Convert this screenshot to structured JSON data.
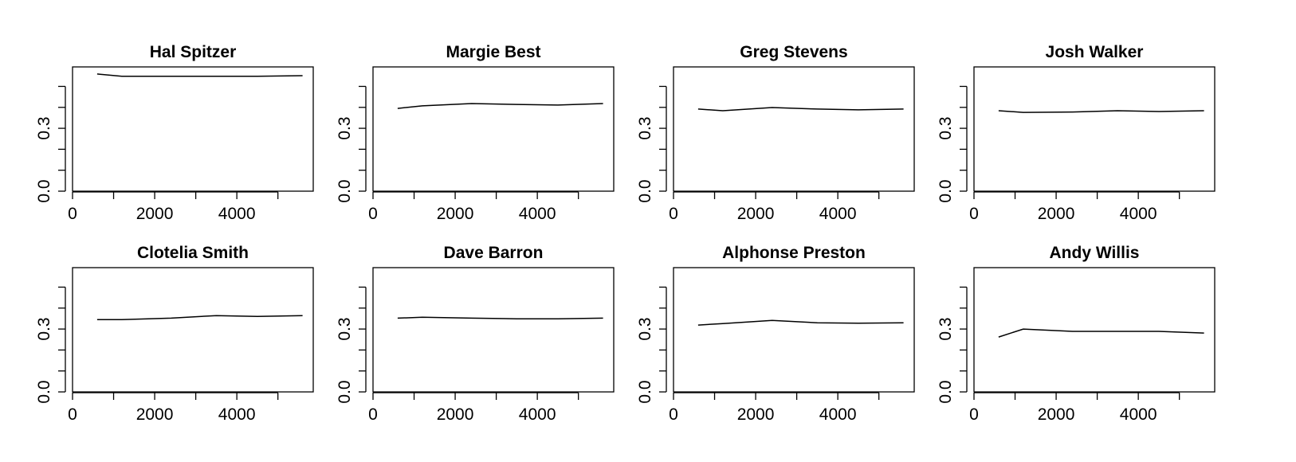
{
  "chart_data": [
    {
      "type": "line",
      "title": "Hal Spitzer",
      "x": [
        600,
        1200,
        2400,
        3500,
        4500,
        5600
      ],
      "values": [
        0.559,
        0.548,
        0.548,
        0.548,
        0.548,
        0.551
      ],
      "color": "#000000",
      "xlim": [
        0,
        5860
      ],
      "ylim": [
        0,
        0.593
      ],
      "xticks": [
        0,
        2000,
        4000
      ],
      "xminor_ticks": [
        1000,
        3000,
        5000
      ],
      "yticks": [
        {
          "value": 0,
          "label": "0.0"
        },
        {
          "value": 0.3,
          "label": "0.3"
        }
      ],
      "yminor_ticks": [
        0.1,
        0.2,
        0.4,
        0.5
      ]
    },
    {
      "type": "line",
      "title": "Margie Best",
      "x": [
        600,
        1200,
        2400,
        3500,
        4500,
        5600
      ],
      "values": [
        0.395,
        0.407,
        0.418,
        0.414,
        0.411,
        0.418
      ],
      "color": "#000000",
      "xlim": [
        0,
        5860
      ],
      "ylim": [
        0,
        0.593
      ],
      "xticks": [
        0,
        2000,
        4000
      ],
      "xminor_ticks": [
        1000,
        3000,
        5000
      ],
      "yticks": [
        {
          "value": 0,
          "label": "0.0"
        },
        {
          "value": 0.3,
          "label": "0.3"
        }
      ],
      "yminor_ticks": [
        0.1,
        0.2,
        0.4,
        0.5
      ]
    },
    {
      "type": "line",
      "title": "Greg Stevens",
      "x": [
        600,
        1200,
        2400,
        3500,
        4500,
        5600
      ],
      "values": [
        0.392,
        0.384,
        0.399,
        0.392,
        0.388,
        0.392
      ],
      "color": "#000000",
      "xlim": [
        0,
        5860
      ],
      "ylim": [
        0,
        0.593
      ],
      "xticks": [
        0,
        2000,
        4000
      ],
      "xminor_ticks": [
        1000,
        3000,
        5000
      ],
      "yticks": [
        {
          "value": 0,
          "label": "0.0"
        },
        {
          "value": 0.3,
          "label": "0.3"
        }
      ],
      "yminor_ticks": [
        0.1,
        0.2,
        0.4,
        0.5
      ]
    },
    {
      "type": "line",
      "title": "Josh Walker",
      "x": [
        600,
        1200,
        2400,
        3500,
        4500,
        5600
      ],
      "values": [
        0.384,
        0.376,
        0.378,
        0.384,
        0.38,
        0.384
      ],
      "color": "#000000",
      "xlim": [
        0,
        5860
      ],
      "ylim": [
        0,
        0.593
      ],
      "xticks": [
        0,
        2000,
        4000
      ],
      "xminor_ticks": [
        1000,
        3000,
        5000
      ],
      "yticks": [
        {
          "value": 0,
          "label": "0.0"
        },
        {
          "value": 0.3,
          "label": "0.3"
        }
      ],
      "yminor_ticks": [
        0.1,
        0.2,
        0.4,
        0.5
      ]
    },
    {
      "type": "line",
      "title": "Clotelia Smith",
      "x": [
        600,
        1200,
        2400,
        3500,
        4500,
        5600
      ],
      "values": [
        0.345,
        0.345,
        0.352,
        0.364,
        0.36,
        0.364
      ],
      "color": "#000000",
      "xlim": [
        0,
        5860
      ],
      "ylim": [
        0,
        0.593
      ],
      "xticks": [
        0,
        2000,
        4000
      ],
      "xminor_ticks": [
        1000,
        3000,
        5000
      ],
      "yticks": [
        {
          "value": 0,
          "label": "0.0"
        },
        {
          "value": 0.3,
          "label": "0.3"
        }
      ],
      "yminor_ticks": [
        0.1,
        0.2,
        0.4,
        0.5
      ]
    },
    {
      "type": "line",
      "title": "Dave Barron",
      "x": [
        600,
        1200,
        2400,
        3500,
        4500,
        5600
      ],
      "values": [
        0.352,
        0.356,
        0.352,
        0.349,
        0.349,
        0.352
      ],
      "color": "#000000",
      "xlim": [
        0,
        5860
      ],
      "ylim": [
        0,
        0.593
      ],
      "xticks": [
        0,
        2000,
        4000
      ],
      "xminor_ticks": [
        1000,
        3000,
        5000
      ],
      "yticks": [
        {
          "value": 0,
          "label": "0.0"
        },
        {
          "value": 0.3,
          "label": "0.3"
        }
      ],
      "yminor_ticks": [
        0.1,
        0.2,
        0.4,
        0.5
      ]
    },
    {
      "type": "line",
      "title": "Alphonse Preston",
      "x": [
        600,
        1200,
        2400,
        3500,
        4500,
        5600
      ],
      "values": [
        0.319,
        0.326,
        0.341,
        0.33,
        0.328,
        0.33
      ],
      "color": "#000000",
      "xlim": [
        0,
        5860
      ],
      "ylim": [
        0,
        0.593
      ],
      "xticks": [
        0,
        2000,
        4000
      ],
      "xminor_ticks": [
        1000,
        3000,
        5000
      ],
      "yticks": [
        {
          "value": 0,
          "label": "0.0"
        },
        {
          "value": 0.3,
          "label": "0.3"
        }
      ],
      "yminor_ticks": [
        0.1,
        0.2,
        0.4,
        0.5
      ]
    },
    {
      "type": "line",
      "title": "Andy Willis",
      "x": [
        600,
        1200,
        2400,
        3500,
        4500,
        5600
      ],
      "values": [
        0.262,
        0.3,
        0.289,
        0.289,
        0.289,
        0.281
      ],
      "color": "#000000",
      "xlim": [
        0,
        5860
      ],
      "ylim": [
        0,
        0.593
      ],
      "xticks": [
        0,
        2000,
        4000
      ],
      "xminor_ticks": [
        1000,
        3000,
        5000
      ],
      "yticks": [
        {
          "value": 0,
          "label": "0.0"
        },
        {
          "value": 0.3,
          "label": "0.3"
        }
      ],
      "yminor_ticks": [
        0.1,
        0.2,
        0.4,
        0.5
      ]
    }
  ]
}
